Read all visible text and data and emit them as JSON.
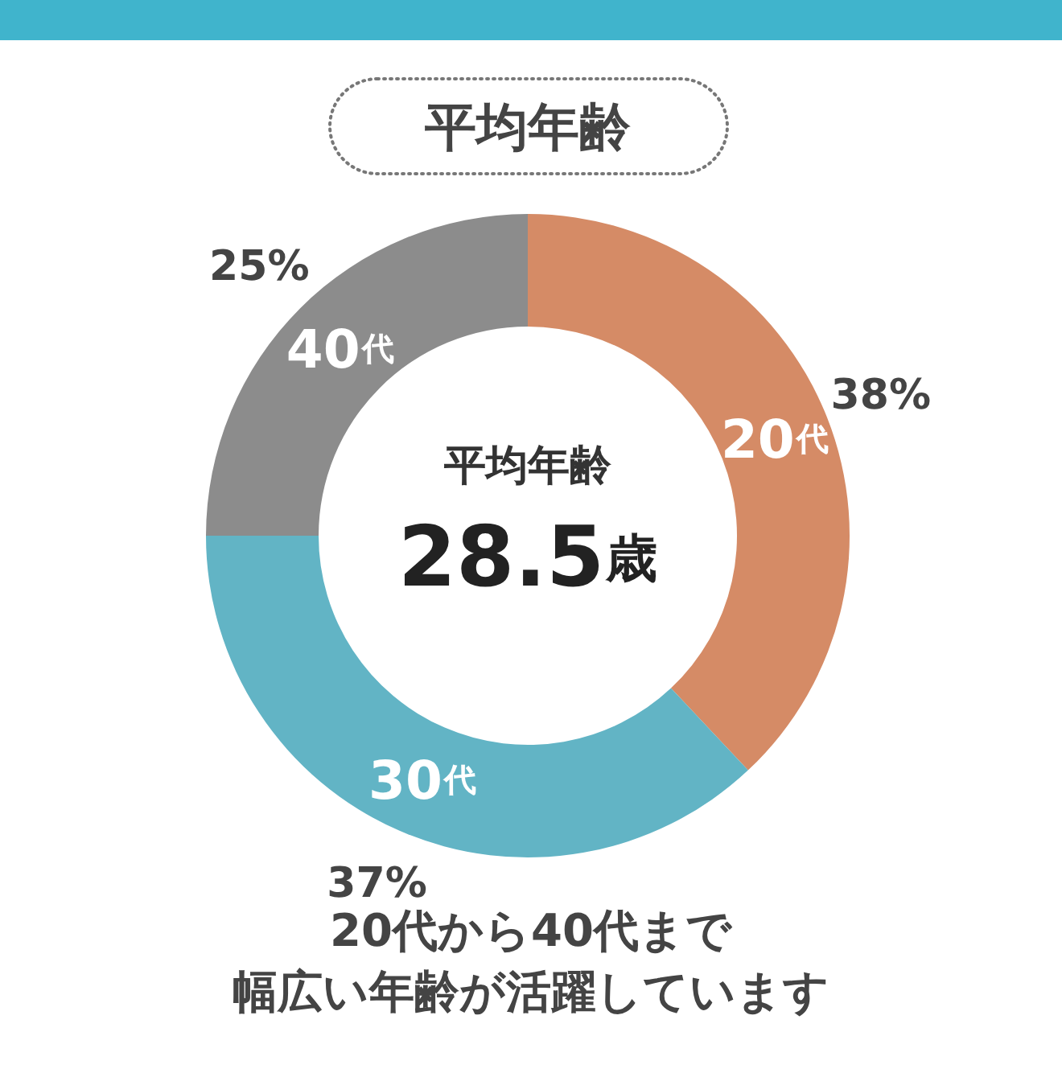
{
  "chart_data": {
    "type": "donut",
    "title": "平均年齢",
    "categories": [
      "20代",
      "30代",
      "40代"
    ],
    "values": [
      38,
      37,
      25
    ],
    "colors": [
      "#d58b66",
      "#62b4c5",
      "#8c8c8c"
    ],
    "value_labels": [
      "38%",
      "37%",
      "25%"
    ],
    "annotations": [
      "平均年齢",
      "28.5歳",
      "20代から40代まで",
      "幅広い年齢が活躍しています"
    ]
  }
}
